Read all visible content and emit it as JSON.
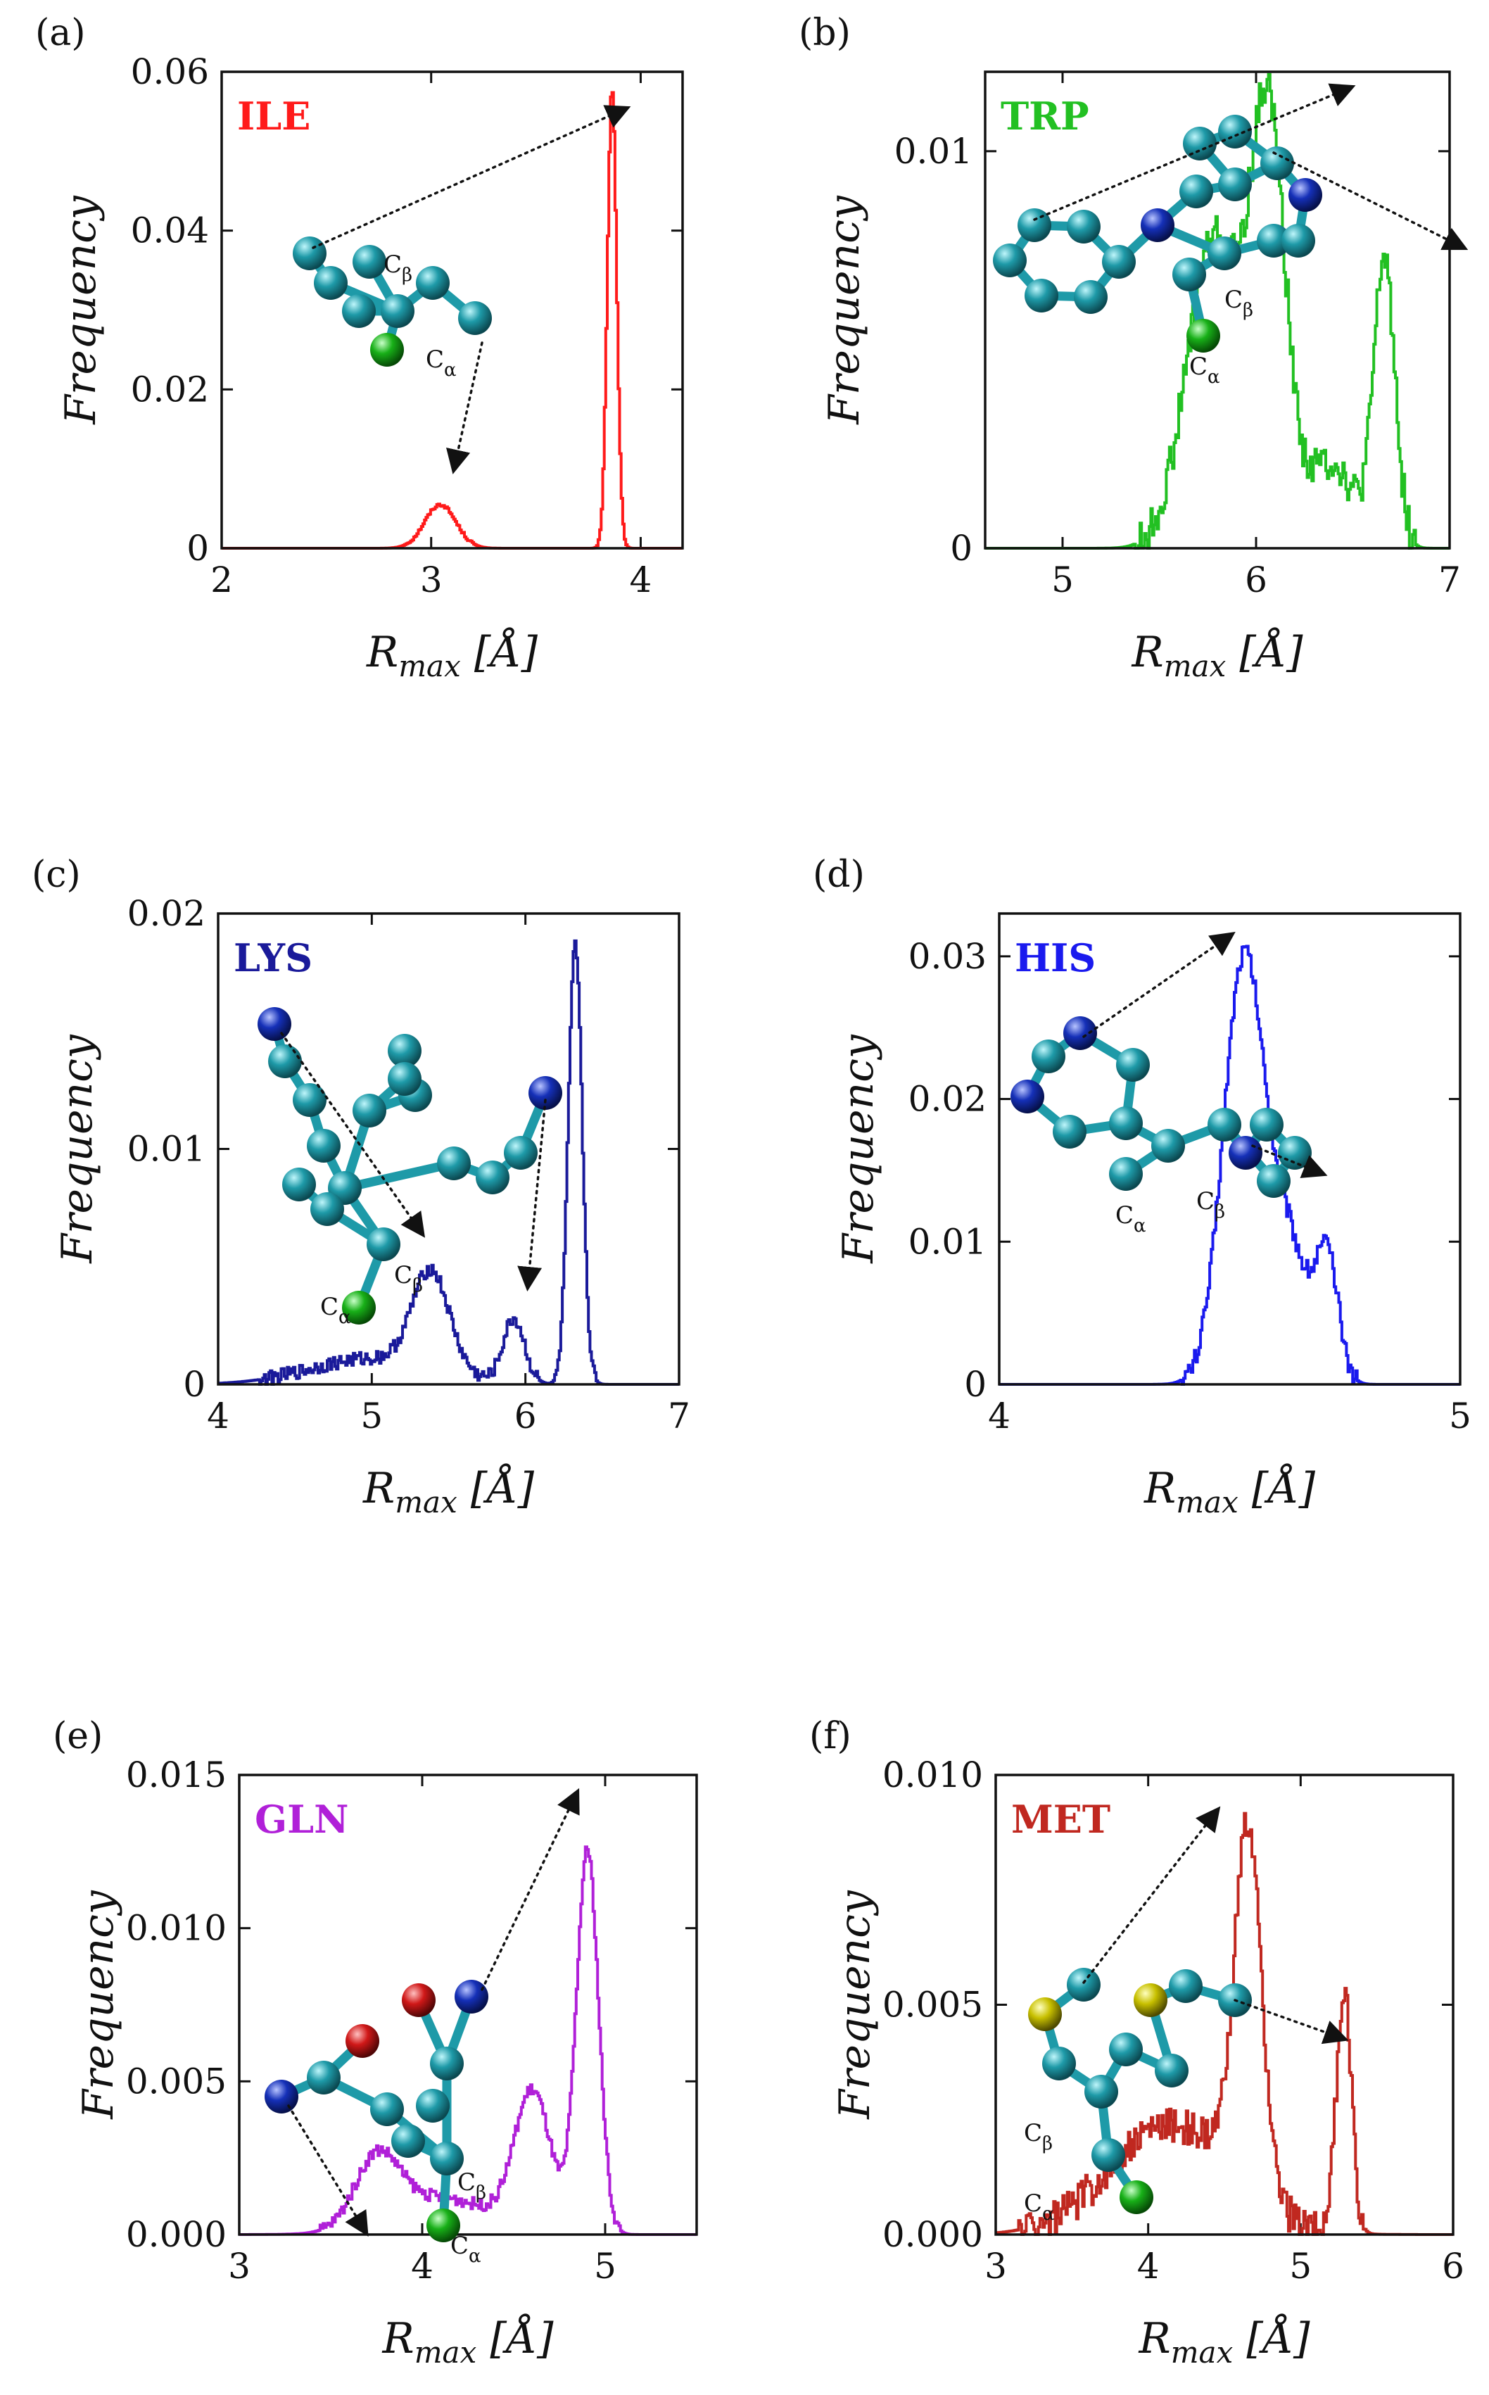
{
  "colors": {
    "carbon": "#1e9aa8",
    "nitrogen": "#1530b8",
    "oxygen": "#d01818",
    "sulfur": "#c8c000",
    "calpha": "#18b018"
  },
  "chart_data": [
    {
      "id": "a",
      "panel_label": "(a)",
      "residue": "ILE",
      "color": "#ff1a1a",
      "type": "line",
      "xlabel": "R_max [Å]",
      "ylabel": "Frequency",
      "xlim": [
        2,
        4.2
      ],
      "ylim": [
        0,
        0.06
      ],
      "xticks": [
        2,
        3,
        4
      ],
      "xtick_labels": [
        "2",
        "3",
        "4"
      ],
      "yticks": [
        0,
        0.02,
        0.04,
        0.06
      ],
      "ytick_labels": [
        "0",
        "0.02",
        "0.04",
        "0.06"
      ],
      "series": [
        {
          "peaks": [
            [
              3.04,
              0.0055,
              0.075
            ],
            [
              3.86,
              0.058,
              0.022
            ]
          ],
          "noise": 0.0002
        }
      ],
      "atom_labels": [
        "Cβ",
        "Cα"
      ]
    },
    {
      "id": "b",
      "panel_label": "(b)",
      "residue": "TRP",
      "color": "#22c022",
      "type": "line",
      "xlabel": "R_max [Å]",
      "ylabel": "Frequency",
      "xlim": [
        4.6,
        7
      ],
      "ylim": [
        0,
        0.012
      ],
      "xticks": [
        5,
        6,
        7
      ],
      "xtick_labels": [
        "5",
        "6",
        "7"
      ],
      "yticks": [
        0,
        0.01
      ],
      "ytick_labels": [
        "0",
        "0.01"
      ],
      "series": [
        {
          "peaks": [
            [
              5.78,
              0.0078,
              0.14
            ],
            [
              6.06,
              0.0105,
              0.09
            ],
            [
              6.38,
              0.0022,
              0.12
            ],
            [
              6.66,
              0.0072,
              0.055
            ]
          ],
          "noise": 0.0005
        }
      ],
      "atom_labels": [
        "Cβ",
        "Cα"
      ]
    },
    {
      "id": "c",
      "panel_label": "(c)",
      "residue": "LYS",
      "color": "#1a1a9a",
      "type": "line",
      "xlabel": "R_max [Å]",
      "ylabel": "Frequency",
      "xlim": [
        4,
        7
      ],
      "ylim": [
        0,
        0.02
      ],
      "xticks": [
        4,
        5,
        6,
        7
      ],
      "xtick_labels": [
        "4",
        "5",
        "6",
        "7"
      ],
      "yticks": [
        0,
        0.01,
        0.02
      ],
      "ytick_labels": [
        "0",
        "0.01",
        "0.02"
      ],
      "series": [
        {
          "peaks": [
            [
              5.0,
              0.0011,
              0.4
            ],
            [
              5.38,
              0.0042,
              0.12
            ],
            [
              5.92,
              0.0027,
              0.07
            ],
            [
              6.32,
              0.0186,
              0.045
            ]
          ],
          "noise": 0.0003
        }
      ],
      "atom_labels": [
        "Cβ",
        "Cα"
      ]
    },
    {
      "id": "d",
      "panel_label": "(d)",
      "residue": "HIS",
      "color": "#1a1aee",
      "type": "line",
      "xlabel": "R_max [Å]",
      "ylabel": "Frequency",
      "xlim": [
        4,
        5
      ],
      "ylim": [
        0,
        0.033
      ],
      "xticks": [
        4,
        5
      ],
      "xtick_labels": [
        "4",
        "5"
      ],
      "yticks": [
        0,
        0.01,
        0.02,
        0.03
      ],
      "ytick_labels": [
        "0",
        "0.01",
        "0.02",
        "0.03"
      ],
      "series": [
        {
          "peaks": [
            [
              4.53,
              0.03,
              0.045
            ],
            [
              4.63,
              0.009,
              0.04
            ],
            [
              4.71,
              0.0085,
              0.025
            ]
          ],
          "noise": 0.0007
        }
      ],
      "atom_labels": [
        "Cβ",
        "Cα"
      ]
    },
    {
      "id": "e",
      "panel_label": "(e)",
      "residue": "GLN",
      "color": "#b020d8",
      "type": "line",
      "xlabel": "R_max [Å]",
      "ylabel": "Frequency",
      "xlim": [
        3,
        5.5
      ],
      "ylim": [
        0,
        0.015
      ],
      "xticks": [
        3,
        4,
        5
      ],
      "xtick_labels": [
        "3",
        "4",
        "5"
      ],
      "yticks": [
        0,
        0.005,
        0.01,
        0.015
      ],
      "ytick_labels": [
        "0.000",
        "0.005",
        "0.010",
        "0.015"
      ],
      "series": [
        {
          "peaks": [
            [
              3.75,
              0.0022,
              0.12
            ],
            [
              4.1,
              0.0012,
              0.28
            ],
            [
              4.6,
              0.0045,
              0.1
            ],
            [
              4.9,
              0.0125,
              0.06
            ]
          ],
          "noise": 0.0002
        }
      ],
      "atom_labels": [
        "Cβ",
        "Cα"
      ]
    },
    {
      "id": "f",
      "panel_label": "(f)",
      "residue": "MET",
      "color": "#c02820",
      "type": "line",
      "xlabel": "R_max [Å]",
      "ylabel": "Frequency",
      "xlim": [
        3,
        6
      ],
      "ylim": [
        0,
        0.01
      ],
      "xticks": [
        3,
        4,
        5,
        6
      ],
      "xtick_labels": [
        "3",
        "4",
        "5",
        "6"
      ],
      "yticks": [
        0,
        0.005,
        0.01
      ],
      "ytick_labels": [
        "0.000",
        "0.005",
        "0.010"
      ],
      "series": [
        {
          "peaks": [
            [
              4.15,
              0.0024,
              0.4
            ],
            [
              4.65,
              0.0078,
              0.09
            ],
            [
              5.28,
              0.0052,
              0.05
            ]
          ],
          "noise": 0.0004
        }
      ],
      "atom_labels": [
        "Cβ",
        "Cα"
      ]
    }
  ]
}
